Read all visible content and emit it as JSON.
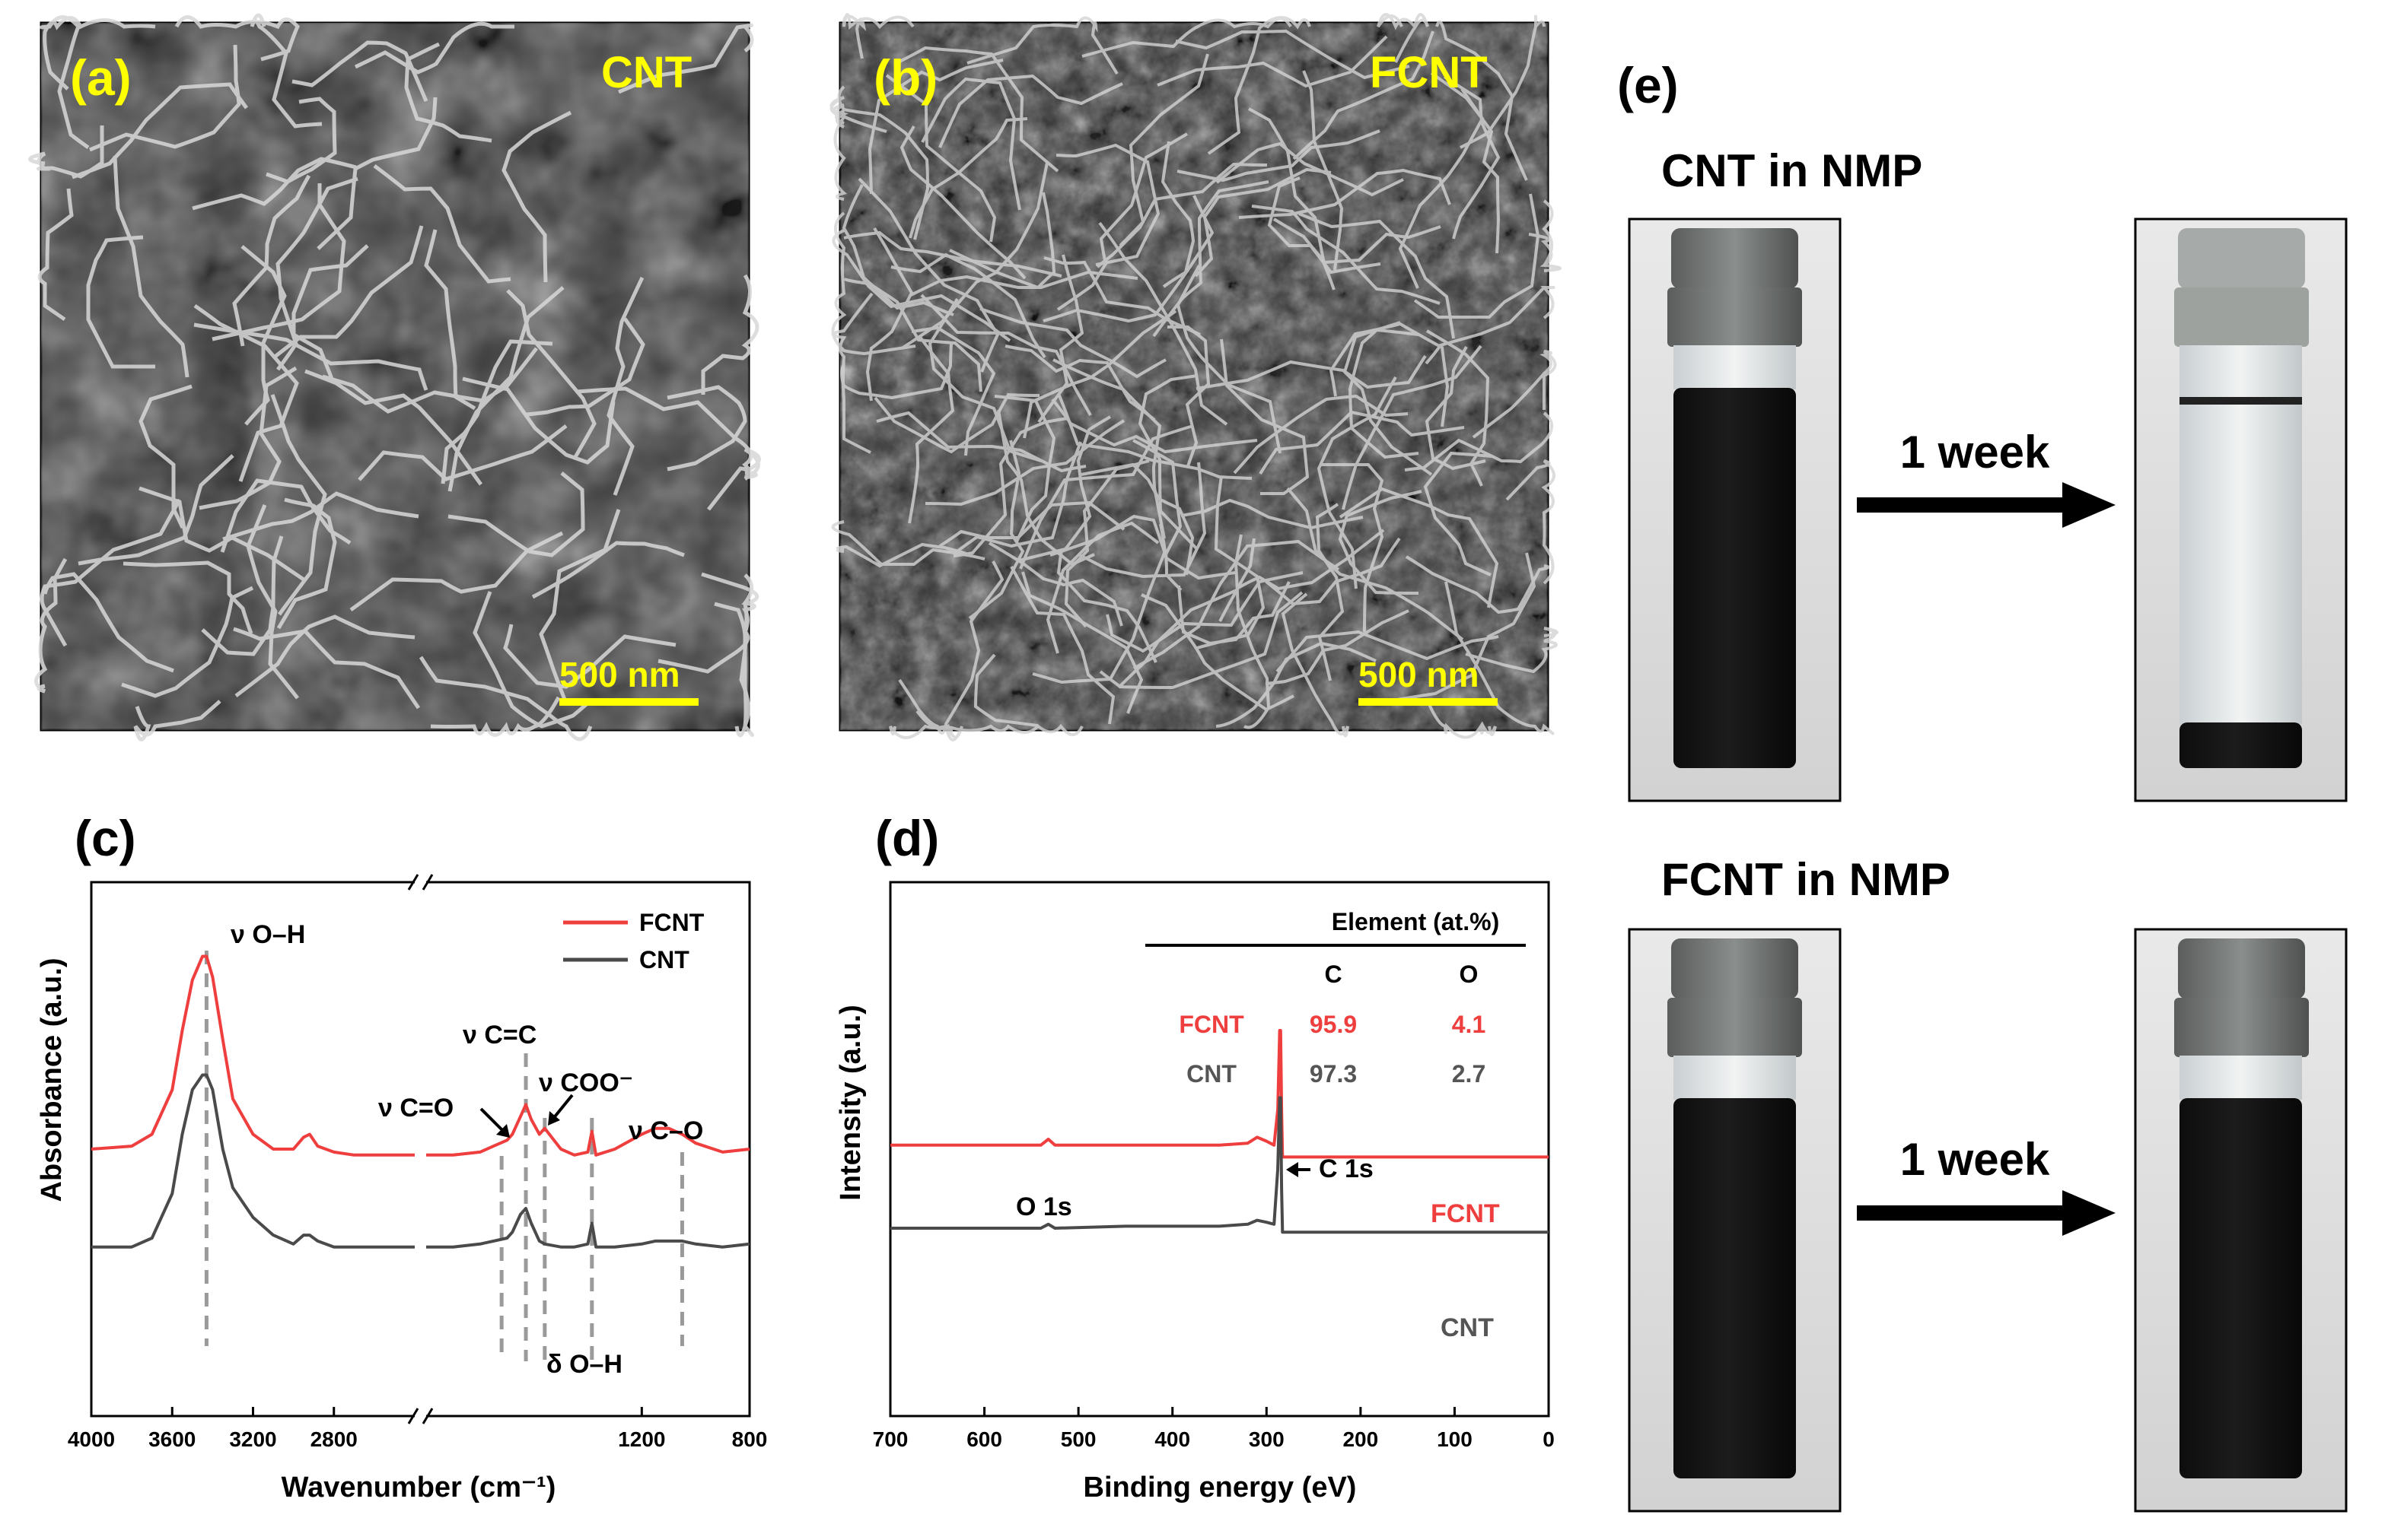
{
  "panels": {
    "a": {
      "letter": "(a)",
      "name": "CNT",
      "scale": "500 nm"
    },
    "b": {
      "letter": "(b)",
      "name": "FCNT",
      "scale": "500 nm"
    },
    "c": {
      "letter": "(c)"
    },
    "d": {
      "letter": "(d)"
    },
    "e": {
      "letter": "(e)",
      "top_title": "CNT in NMP",
      "bottom_title": "FCNT in NMP",
      "arrow_label_top": "1 week",
      "arrow_label_bottom": "1 week"
    }
  },
  "colors": {
    "fcnt": "#ef3e3e",
    "cnt": "#4a4a4a",
    "sem_label": "#ffff00",
    "guide": "#9a9a9a"
  },
  "chart_data": [
    {
      "id": "c",
      "type": "line",
      "xlabel": "Wavenumber (cm⁻¹)",
      "ylabel": "Absorbance (a.u.)",
      "x_reversed": true,
      "axis_break": [
        2400,
        2000
      ],
      "xticks": [
        "4000",
        "3600",
        "3200",
        "2800",
        "1200",
        "800"
      ],
      "legend": [
        "FCNT",
        "CNT"
      ],
      "legend_position": "top-right",
      "annotations": [
        "ν O–H",
        "ν C=C",
        "ν C=O",
        "ν COO⁻",
        "ν C–O",
        "δ O–H"
      ],
      "series": [
        {
          "name": "FCNT",
          "x": [
            4000,
            3800,
            3700,
            3600,
            3550,
            3500,
            3450,
            3430,
            3400,
            3350,
            3300,
            3200,
            3100,
            3000,
            2950,
            2920,
            2880,
            2800,
            2700,
            2600,
            2500,
            2400,
            2000,
            1900,
            1800,
            1750,
            1700,
            1680,
            1650,
            1630,
            1610,
            1580,
            1560,
            1500,
            1450,
            1400,
            1385,
            1370,
            1300,
            1200,
            1150,
            1100,
            1050,
            1000,
            900,
            800
          ],
          "y": [
            0.35,
            0.36,
            0.4,
            0.55,
            0.75,
            0.92,
            1.0,
            1.0,
            0.93,
            0.72,
            0.52,
            0.4,
            0.35,
            0.35,
            0.39,
            0.4,
            0.36,
            0.34,
            0.33,
            0.33,
            0.33,
            0.33,
            0.33,
            0.33,
            0.34,
            0.36,
            0.38,
            0.4,
            0.46,
            0.5,
            0.45,
            0.4,
            0.42,
            0.35,
            0.33,
            0.34,
            0.41,
            0.33,
            0.35,
            0.4,
            0.42,
            0.42,
            0.4,
            0.37,
            0.34,
            0.35
          ]
        },
        {
          "name": "CNT",
          "x": [
            4000,
            3800,
            3700,
            3600,
            3550,
            3500,
            3450,
            3430,
            3400,
            3350,
            3300,
            3200,
            3100,
            3000,
            2950,
            2920,
            2880,
            2800,
            2700,
            2600,
            2500,
            2400,
            2000,
            1900,
            1800,
            1750,
            1700,
            1680,
            1650,
            1630,
            1610,
            1580,
            1560,
            1500,
            1450,
            1400,
            1385,
            1370,
            1300,
            1200,
            1150,
            1100,
            1050,
            1000,
            900,
            800
          ],
          "y": [
            0.02,
            0.02,
            0.05,
            0.2,
            0.4,
            0.55,
            0.6,
            0.6,
            0.55,
            0.35,
            0.22,
            0.12,
            0.06,
            0.03,
            0.06,
            0.06,
            0.04,
            0.02,
            0.02,
            0.02,
            0.02,
            0.02,
            0.02,
            0.02,
            0.03,
            0.04,
            0.05,
            0.07,
            0.13,
            0.15,
            0.1,
            0.04,
            0.03,
            0.02,
            0.02,
            0.03,
            0.1,
            0.02,
            0.02,
            0.03,
            0.04,
            0.04,
            0.04,
            0.03,
            0.02,
            0.03
          ]
        }
      ]
    },
    {
      "id": "d",
      "type": "line",
      "xlabel": "Binding energy (eV)",
      "ylabel": "Intensity (a.u.)",
      "x_reversed": true,
      "xlim": [
        700,
        0
      ],
      "xticks": [
        700,
        600,
        500,
        400,
        300,
        200,
        100,
        0
      ],
      "labels": [
        "O 1s",
        "C 1s",
        "FCNT",
        "CNT"
      ],
      "table": {
        "header": "Element (at.%)",
        "columns": [
          "C",
          "O"
        ],
        "rows": [
          {
            "name": "FCNT",
            "C": "95.9",
            "O": "4.1"
          },
          {
            "name": "CNT",
            "C": "97.3",
            "O": "2.7"
          }
        ]
      },
      "series": [
        {
          "name": "FCNT",
          "x": [
            700,
            600,
            540,
            532,
            525,
            450,
            400,
            350,
            320,
            310,
            300,
            292,
            288,
            286,
            285,
            284,
            283,
            280,
            270,
            200,
            100,
            0
          ],
          "y": [
            0.42,
            0.42,
            0.42,
            0.45,
            0.42,
            0.42,
            0.42,
            0.42,
            0.43,
            0.46,
            0.44,
            0.42,
            0.6,
            1.0,
            1.0,
            0.6,
            0.36,
            0.36,
            0.36,
            0.36,
            0.36,
            0.36
          ]
        },
        {
          "name": "CNT",
          "x": [
            700,
            600,
            540,
            532,
            525,
            450,
            400,
            350,
            320,
            310,
            300,
            292,
            288,
            286,
            285,
            284,
            283,
            280,
            270,
            200,
            100,
            0
          ],
          "y": [
            0.0,
            0.0,
            0.0,
            0.02,
            0.0,
            0.01,
            0.01,
            0.01,
            0.02,
            0.04,
            0.03,
            0.02,
            0.3,
            0.66,
            0.66,
            0.2,
            -0.02,
            -0.02,
            -0.02,
            -0.02,
            -0.02,
            -0.02
          ]
        }
      ]
    }
  ]
}
